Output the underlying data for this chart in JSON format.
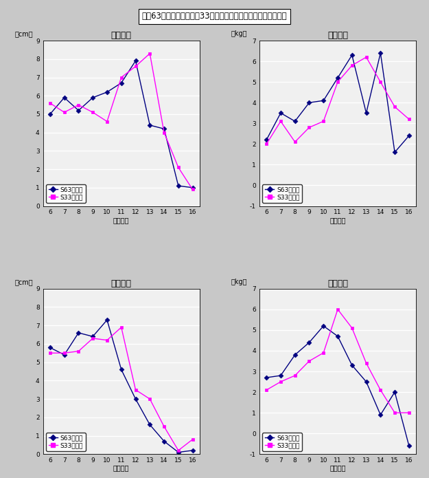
{
  "title": "昭和63年度生まれと昭和33年度生まれの者の年間発育量の比較",
  "x_values": [
    6,
    7,
    8,
    9,
    10,
    11,
    12,
    13,
    14,
    15,
    16
  ],
  "xlabel": "（歳時）",
  "boy_height": {
    "title": "男子身長",
    "ylabel": "（cm）",
    "ylim": [
      0,
      9
    ],
    "yticks": [
      0,
      1,
      2,
      3,
      4,
      5,
      6,
      7,
      8,
      9
    ],
    "s63": [
      5.0,
      5.9,
      5.2,
      5.9,
      6.2,
      6.7,
      7.9,
      4.4,
      4.2,
      1.1,
      1.0
    ],
    "s33": [
      5.6,
      5.1,
      5.5,
      5.1,
      4.6,
      7.0,
      7.6,
      8.3,
      4.0,
      2.1,
      0.9
    ]
  },
  "boy_weight": {
    "title": "男子体重",
    "ylabel": "（kg）",
    "ylim": [
      -1,
      7
    ],
    "yticks": [
      -1,
      0,
      1,
      2,
      3,
      4,
      5,
      6,
      7
    ],
    "s63": [
      2.2,
      3.5,
      3.1,
      4.0,
      4.1,
      5.2,
      6.3,
      3.5,
      6.4,
      1.6,
      2.4
    ],
    "s33": [
      2.0,
      3.1,
      2.1,
      2.8,
      3.1,
      5.0,
      5.8,
      6.2,
      5.0,
      3.8,
      3.2
    ]
  },
  "girl_height": {
    "title": "女子身長",
    "ylabel": "（cm）",
    "ylim": [
      0,
      9
    ],
    "yticks": [
      0,
      1,
      2,
      3,
      4,
      5,
      6,
      7,
      8,
      9
    ],
    "s63": [
      5.8,
      5.4,
      6.6,
      6.4,
      7.3,
      4.6,
      3.0,
      1.6,
      0.7,
      0.1,
      0.2
    ],
    "s33": [
      5.5,
      5.5,
      5.6,
      6.3,
      6.2,
      6.9,
      3.5,
      3.0,
      1.5,
      0.2,
      0.8
    ]
  },
  "girl_weight": {
    "title": "女子体重",
    "ylabel": "（kg）",
    "ylim": [
      -1,
      7
    ],
    "yticks": [
      -1,
      0,
      1,
      2,
      3,
      4,
      5,
      6,
      7
    ],
    "s63": [
      2.7,
      2.8,
      3.8,
      4.4,
      5.2,
      4.7,
      3.3,
      2.5,
      0.9,
      2.0,
      -0.6
    ],
    "s33": [
      2.1,
      2.5,
      2.8,
      3.5,
      3.9,
      6.0,
      5.1,
      3.4,
      2.1,
      1.0,
      1.0
    ]
  },
  "color_s63": "#000080",
  "color_s33": "#FF00FF",
  "legend_s63": "S63年度生",
  "legend_s33": "S33年度生",
  "bg_color": "#F0F0F0",
  "grid_color": "white",
  "fig_bg": "#C8C8C8",
  "title_box_color": "white"
}
